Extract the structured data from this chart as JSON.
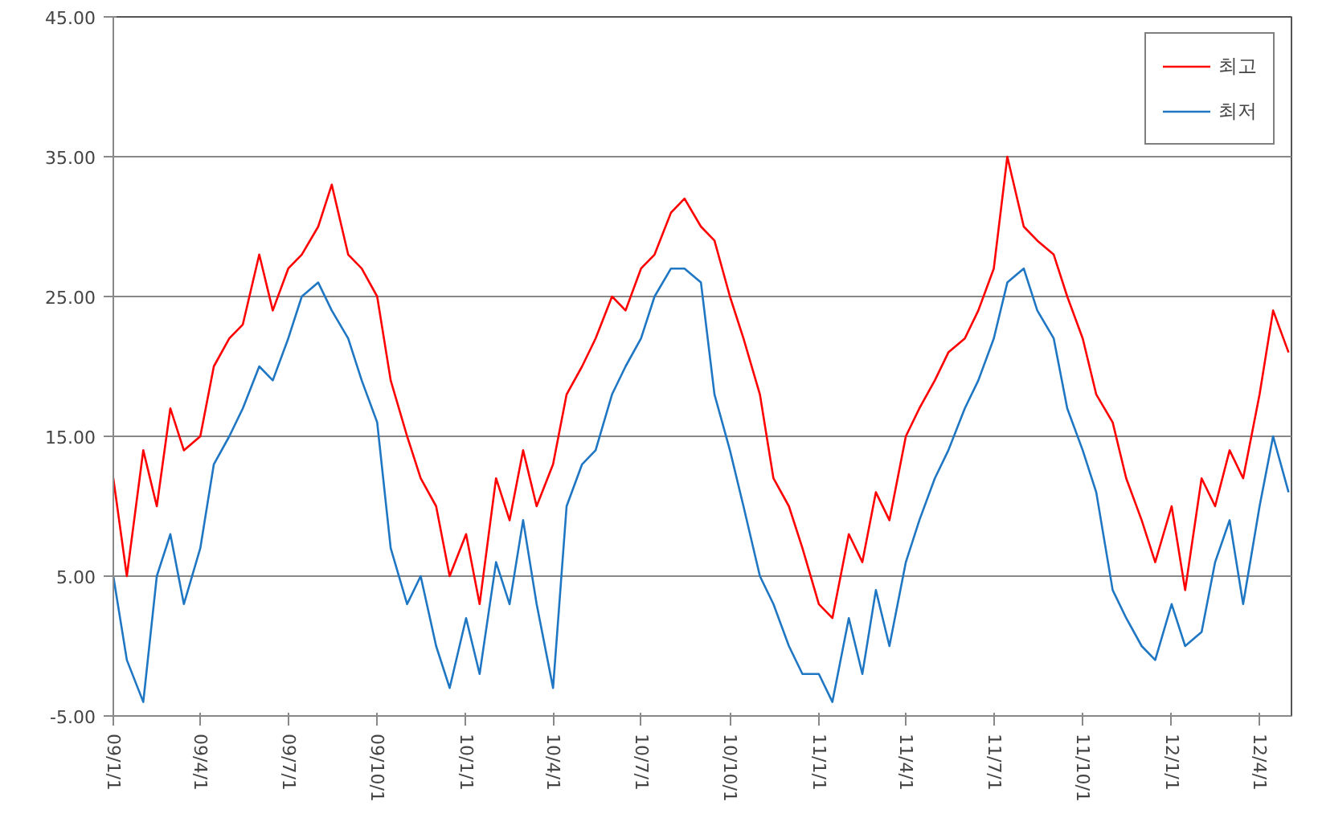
{
  "chart_data": {
    "type": "line",
    "x": [
      "2009-01-01",
      "2009-01-15",
      "2009-02-01",
      "2009-02-15",
      "2009-03-01",
      "2009-03-15",
      "2009-04-01",
      "2009-04-15",
      "2009-05-01",
      "2009-05-15",
      "2009-06-01",
      "2009-06-15",
      "2009-07-01",
      "2009-07-15",
      "2009-08-01",
      "2009-08-15",
      "2009-09-01",
      "2009-09-15",
      "2009-10-01",
      "2009-10-15",
      "2009-11-01",
      "2009-11-15",
      "2009-12-01",
      "2009-12-15",
      "2010-01-01",
      "2010-01-15",
      "2010-02-01",
      "2010-02-15",
      "2010-03-01",
      "2010-03-15",
      "2010-04-01",
      "2010-04-15",
      "2010-05-01",
      "2010-05-15",
      "2010-06-01",
      "2010-06-15",
      "2010-07-01",
      "2010-07-15",
      "2010-08-01",
      "2010-08-15",
      "2010-09-01",
      "2010-09-15",
      "2010-10-01",
      "2010-10-15",
      "2010-11-01",
      "2010-11-15",
      "2010-12-01",
      "2010-12-15",
      "2011-01-01",
      "2011-01-15",
      "2011-02-01",
      "2011-02-15",
      "2011-03-01",
      "2011-03-15",
      "2011-04-01",
      "2011-04-15",
      "2011-05-01",
      "2011-05-15",
      "2011-06-01",
      "2011-06-15",
      "2011-07-01",
      "2011-07-15",
      "2011-08-01",
      "2011-08-15",
      "2011-09-01",
      "2011-09-15",
      "2011-10-01",
      "2011-10-15",
      "2011-11-01",
      "2011-11-15",
      "2011-12-01",
      "2011-12-15",
      "2012-01-01",
      "2012-01-15",
      "2012-02-01",
      "2012-02-15",
      "2012-03-01",
      "2012-03-15",
      "2012-04-01",
      "2012-04-15",
      "2012-05-01"
    ],
    "series": [
      {
        "name": "최고",
        "color": "#ff0000",
        "values": [
          12,
          5,
          14,
          10,
          17,
          14,
          15,
          20,
          22,
          23,
          28,
          24,
          27,
          28,
          30,
          33,
          28,
          27,
          25,
          19,
          15,
          12,
          10,
          5,
          8,
          3,
          12,
          9,
          14,
          10,
          13,
          18,
          20,
          22,
          25,
          24,
          27,
          28,
          31,
          32,
          30,
          29,
          25,
          22,
          18,
          12,
          10,
          7,
          3,
          2,
          8,
          6,
          11,
          9,
          15,
          17,
          19,
          21,
          22,
          24,
          27,
          35,
          30,
          29,
          28,
          25,
          22,
          18,
          16,
          12,
          9,
          6,
          10,
          4,
          12,
          10,
          14,
          12,
          18,
          24,
          21
        ]
      },
      {
        "name": "최저",
        "color": "#1f77c4",
        "values": [
          5,
          -1,
          -4,
          5,
          8,
          3,
          7,
          13,
          15,
          17,
          20,
          19,
          22,
          25,
          26,
          24,
          22,
          19,
          16,
          7,
          3,
          5,
          0,
          -3,
          2,
          -2,
          6,
          3,
          9,
          3,
          -3,
          10,
          13,
          14,
          18,
          20,
          22,
          25,
          27,
          27,
          26,
          18,
          14,
          10,
          5,
          3,
          0,
          -2,
          -2,
          -4,
          2,
          -2,
          4,
          0,
          6,
          9,
          12,
          14,
          17,
          19,
          22,
          26,
          27,
          24,
          22,
          17,
          14,
          11,
          4,
          2,
          0,
          -1,
          3,
          0,
          1,
          6,
          9,
          3,
          10,
          15,
          11
        ]
      }
    ],
    "xlim": [
      "2009-01-01",
      "2012-05-04"
    ],
    "xticks": [
      {
        "value": "2009-01-01",
        "label": "09/1/1"
      },
      {
        "value": "2009-04-01",
        "label": "09/4/1"
      },
      {
        "value": "2009-07-01",
        "label": "09/7/1"
      },
      {
        "value": "2009-10-01",
        "label": "09/10/1"
      },
      {
        "value": "2010-01-01",
        "label": "10/1/1"
      },
      {
        "value": "2010-04-01",
        "label": "10/4/1"
      },
      {
        "value": "2010-07-01",
        "label": "10/7/1"
      },
      {
        "value": "2010-10-01",
        "label": "10/10/1"
      },
      {
        "value": "2011-01-01",
        "label": "11/1/1"
      },
      {
        "value": "2011-04-01",
        "label": "11/4/1"
      },
      {
        "value": "2011-07-01",
        "label": "11/7/1"
      },
      {
        "value": "2011-10-01",
        "label": "11/10/1"
      },
      {
        "value": "2012-01-01",
        "label": "12/1/1"
      },
      {
        "value": "2012-04-01",
        "label": "12/4/1"
      }
    ],
    "ylim": [
      -5,
      45
    ],
    "yticks": [
      {
        "value": -5,
        "label": "-5.00"
      },
      {
        "value": 5,
        "label": "5.00"
      },
      {
        "value": 15,
        "label": "15.00"
      },
      {
        "value": 25,
        "label": "25.00"
      },
      {
        "value": 35,
        "label": "35.00"
      },
      {
        "value": 45,
        "label": "45.00"
      }
    ],
    "grid": "y",
    "legend": "top right",
    "marker": "none",
    "line_style": "solid"
  }
}
